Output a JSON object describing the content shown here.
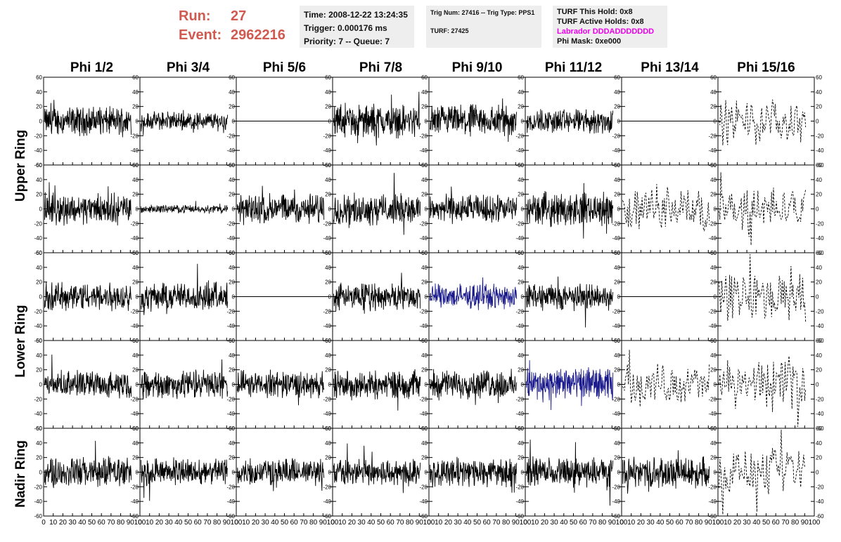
{
  "header": {
    "run_label": "Run:",
    "run_value": "27",
    "event_label": "Event:",
    "event_value": "2962216",
    "time": "Time: 2008-12-22 13:24:35",
    "trigger": "Trigger: 0.000176 ms",
    "priority": "Priority: 7 -- Queue: 7",
    "trig_num": "Trig Num: 27416 -- Trig Type: PPS1",
    "turf": "TURF: 27425",
    "turf_hold": "TURF This Hold: 0x8",
    "turf_active": "TURF Active Holds: 0x8",
    "labrador": "Labrador DDDADDDDDDD",
    "phi_mask": "Phi Mask: 0xe000"
  },
  "colors": {
    "run_text": "#d05a50",
    "labrador": "#ee00ee",
    "trace": "#000000",
    "highlight_trace": "#1a1a8c",
    "box_bg": "#eeeeee"
  },
  "column_headers": [
    "Phi 1/2",
    "Phi 3/4",
    "Phi 5/6",
    "Phi 7/8",
    "Phi 9/10",
    "Phi 11/12",
    "Phi 13/14",
    "Phi 15/16"
  ],
  "row_headers": [
    "Upper Ring",
    "Lower Ring",
    "Nadir Ring"
  ],
  "chart_data": {
    "type": "line",
    "description_grid": "5 rows x 8 columns of waveform panels",
    "xlim": [
      0,
      100
    ],
    "ylim": [
      -60,
      60
    ],
    "x_ticks": [
      0,
      10,
      20,
      30,
      40,
      50,
      60,
      70,
      80,
      90,
      100
    ],
    "x_tick_labels": [
      "0",
      "10",
      "20",
      "30",
      "40",
      "50",
      "60",
      "70",
      "80",
      "90",
      "100"
    ],
    "y_ticks": [
      -60,
      -40,
      -20,
      0,
      20,
      40,
      60
    ],
    "y_tick_labels": [
      "-60",
      "-40",
      "-20",
      "0",
      "20",
      "40",
      "60"
    ],
    "panels": [
      [
        "noise",
        "noise",
        "flat",
        "noise",
        "noise",
        "noise",
        "flat",
        "dashed"
      ],
      [
        "noise",
        "small",
        "noise",
        "noise",
        "noise",
        "noise",
        "dashed",
        "dashed"
      ],
      [
        "noise",
        "noise",
        "flat",
        "noise",
        "blue",
        "noise",
        "flat",
        "dashed"
      ],
      [
        "noise",
        "noise",
        "noise",
        "noise",
        "noise",
        "blue",
        "dashed",
        "dashed"
      ],
      [
        "noise",
        "noise",
        "noise",
        "noise",
        "noise",
        "noise",
        "noise",
        "dashed"
      ]
    ],
    "amplitudes": [
      [
        14,
        9,
        0,
        16,
        16,
        12,
        0,
        22
      ],
      [
        15,
        4,
        15,
        15,
        14,
        16,
        22,
        22
      ],
      [
        14,
        14,
        0,
        13,
        12,
        13,
        0,
        24
      ],
      [
        13,
        14,
        13,
        14,
        14,
        16,
        20,
        25
      ],
      [
        15,
        13,
        13,
        13,
        14,
        14,
        15,
        22
      ]
    ]
  }
}
